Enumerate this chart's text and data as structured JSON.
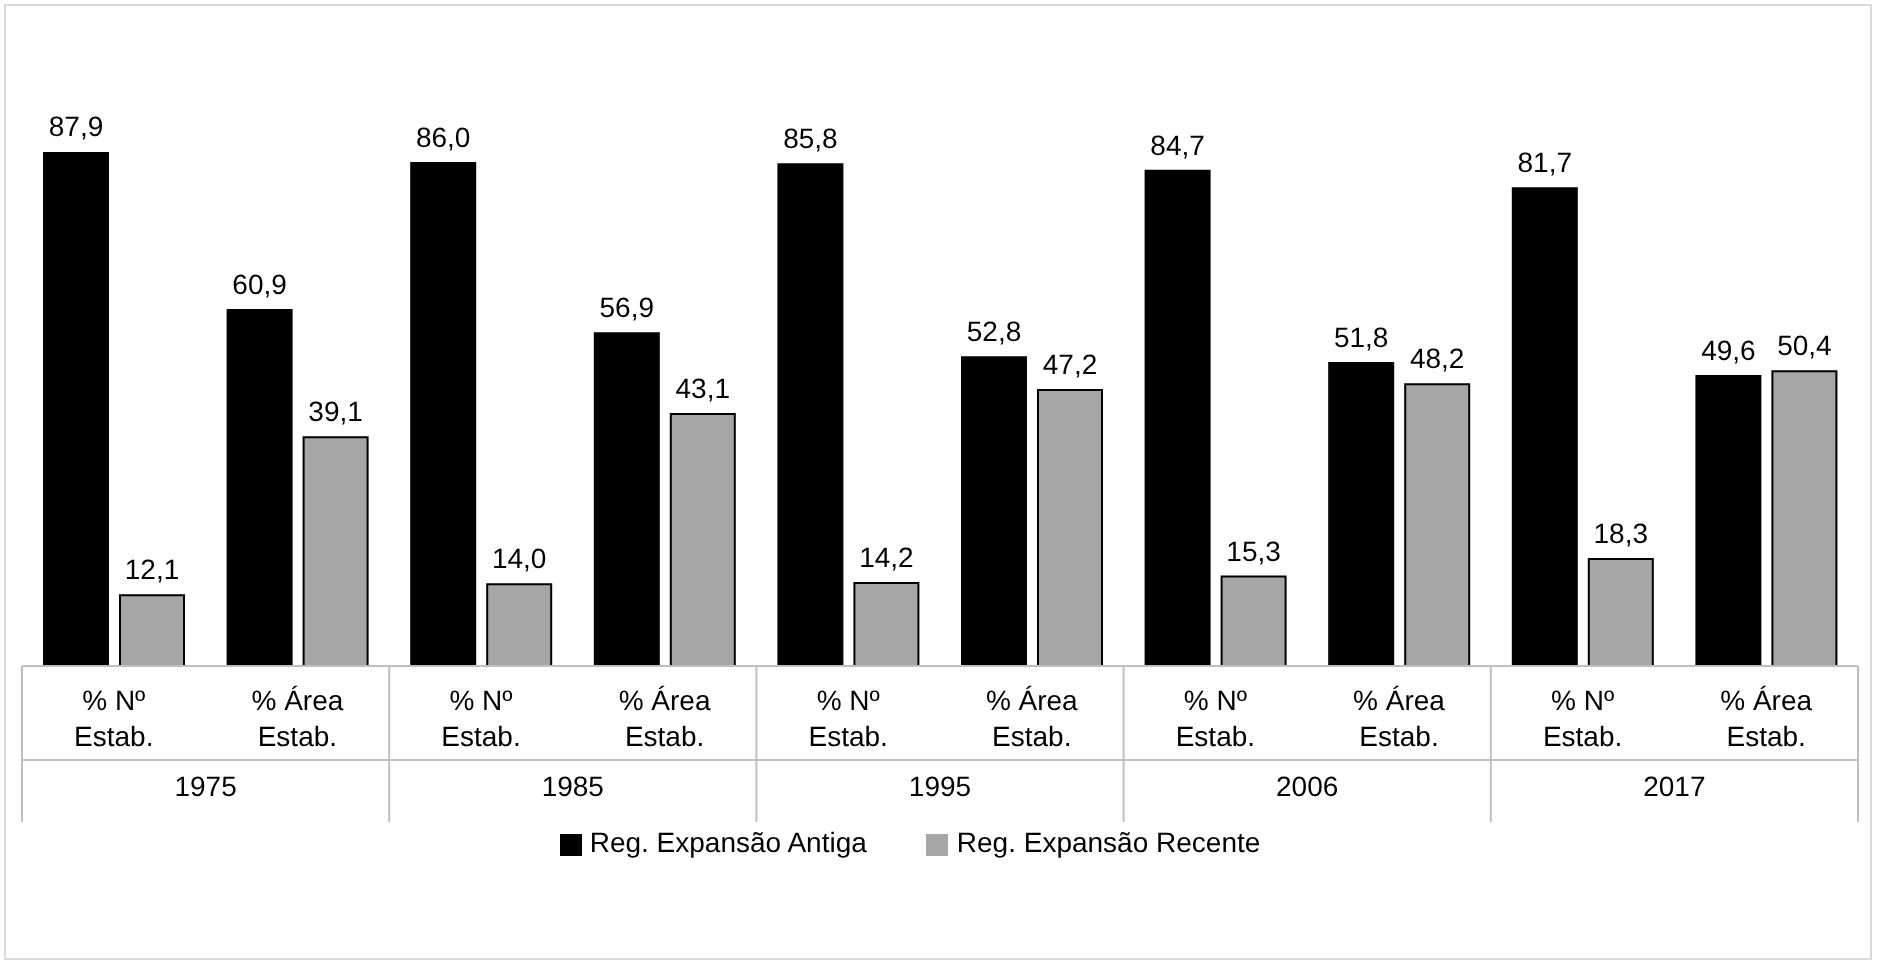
{
  "chart_data": {
    "type": "bar",
    "categories": [
      "% Nº Estab.",
      "% Área Estab.",
      "% Nº Estab.",
      "% Área Estab.",
      "% Nº Estab.",
      "% Área Estab.",
      "% Nº Estab.",
      "% Área Estab.",
      "% Nº Estab.",
      "% Área Estab."
    ],
    "annotations": [
      "1975",
      "1985",
      "1995",
      "2006",
      "2017"
    ],
    "series": [
      {
        "name": "Reg. Expansão Antiga",
        "color": "#000000",
        "values": [
          87.9,
          60.9,
          86.0,
          56.9,
          85.8,
          52.8,
          84.7,
          51.8,
          81.7,
          49.6
        ],
        "value_labels": [
          "87,9",
          "60,9",
          "86,0",
          "56,9",
          "85,8",
          "52,8",
          "84,7",
          "51,8",
          "81,7",
          "49,6"
        ]
      },
      {
        "name": "Reg. Expansão Recente",
        "color": "#a6a6a6",
        "values": [
          12.1,
          39.1,
          14.0,
          43.1,
          14.2,
          47.2,
          15.3,
          48.2,
          18.3,
          50.4
        ],
        "value_labels": [
          "12,1",
          "39,1",
          "14,0",
          "43,1",
          "14,2",
          "47,2",
          "15,3",
          "48,2",
          "18,3",
          "50,4"
        ]
      }
    ],
    "legend": "bottom",
    "grid": false
  }
}
